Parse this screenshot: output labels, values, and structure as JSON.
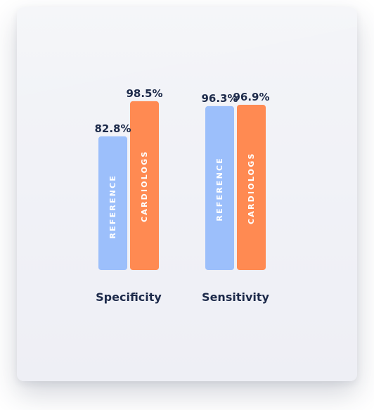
{
  "chart_data": {
    "type": "bar",
    "categories": [
      "Specificity",
      "Sensitivity"
    ],
    "series": [
      {
        "name": "REFERENCE",
        "values": [
          82.8,
          96.3
        ],
        "color": "#9cbffb"
      },
      {
        "name": "CARDIOLOGS",
        "values": [
          98.5,
          96.9
        ],
        "color": "#ff8a52"
      }
    ],
    "value_labels": [
      [
        "82.8%",
        "96.3%"
      ],
      [
        "98.5%",
        "96.9%"
      ]
    ],
    "title": "",
    "xlabel": "",
    "ylabel": "",
    "ylim": [
      0,
      100
    ],
    "grid": false,
    "legend": "none (series names printed inside bars)"
  }
}
